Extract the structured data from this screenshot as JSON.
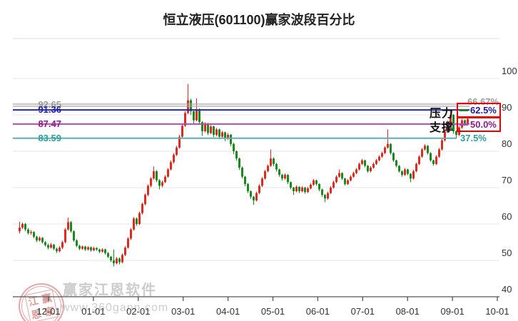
{
  "title": "恒立液压(601100)赢家波段百分比",
  "resistance_label": "压力",
  "support_label": "支撑",
  "watermark": {
    "brand": "赢家江恩软件",
    "url": "www.360gann.com",
    "seal_chars": [
      "江",
      "赢",
      "恩",
      "家"
    ]
  },
  "chart_data": {
    "type": "candlestick",
    "title": "恒立液压(601100)赢家波段百分比",
    "xlabel": "",
    "ylabel": "",
    "ylim": [
      40,
      100
    ],
    "yticks": [
      100,
      90,
      80,
      70,
      60,
      50,
      40
    ],
    "x_tick_labels": [
      "12-01",
      "01-01",
      "02-01",
      "03-01",
      "04-01",
      "05-01",
      "06-01",
      "07-01",
      "08-01",
      "09-01",
      "10-01"
    ],
    "grid": true,
    "colors": {
      "up": "#e02a20",
      "down": "#1a8a1f",
      "grid": "#e4e4e4",
      "axis": "#555555",
      "tick_text": "#333333",
      "box_border": "#e60000",
      "box_dash_resistance": "#1a8a1a",
      "level_gray": "#adadad",
      "level_blue": "#2626b0",
      "level_purple": "#b44ab4",
      "level_teal": "#5ab0b0"
    },
    "levels": [
      {
        "price": "92.65",
        "pct": "66.67%",
        "role": "",
        "line_color": "#adadad",
        "text_color": "#9a9a9a",
        "boxed": false,
        "double_line": true
      },
      {
        "price": "91.36",
        "pct": "62.5%",
        "role": "resistance",
        "line_color": "#2626b0",
        "text_color": "#1c1c9e",
        "boxed": true,
        "double_line": false
      },
      {
        "price": "87.47",
        "pct": "50.0%",
        "role": "support",
        "line_color": "#b44ab4",
        "text_color": "#8c1a8c",
        "boxed": true,
        "double_line": false
      },
      {
        "price": "83.59",
        "pct": "37.5%",
        "role": "",
        "line_color": "#5ab0b0",
        "text_color": "#2d9d9d",
        "boxed": false,
        "double_line": false
      }
    ],
    "candles": [
      [
        58.0,
        60.6,
        57.4,
        59.0
      ],
      [
        59.0,
        60.4,
        58.6,
        60.0
      ],
      [
        60.0,
        60.3,
        58.0,
        58.5
      ],
      [
        58.5,
        58.9,
        57.1,
        57.5
      ],
      [
        57.5,
        58.3,
        57.0,
        57.8
      ],
      [
        57.8,
        58.0,
        56.1,
        56.5
      ],
      [
        56.5,
        56.8,
        55.0,
        55.5
      ],
      [
        55.5,
        56.6,
        55.2,
        56.2
      ],
      [
        56.2,
        56.4,
        54.6,
        55.0
      ],
      [
        55.0,
        55.3,
        53.8,
        54.2
      ],
      [
        54.2,
        54.6,
        53.0,
        53.5
      ],
      [
        53.5,
        54.8,
        53.2,
        54.3
      ],
      [
        54.3,
        54.5,
        52.8,
        53.2
      ],
      [
        53.2,
        53.5,
        52.0,
        52.5
      ],
      [
        52.5,
        53.9,
        52.2,
        53.5
      ],
      [
        53.5,
        55.4,
        53.1,
        55.0
      ],
      [
        55.0,
        58.9,
        54.7,
        58.5
      ],
      [
        58.5,
        61.8,
        58.2,
        60.5
      ],
      [
        60.5,
        60.8,
        57.6,
        58.0
      ],
      [
        58.0,
        58.2,
        55.1,
        55.5
      ],
      [
        55.5,
        55.8,
        53.6,
        54.0
      ],
      [
        54.0,
        54.3,
        52.8,
        53.2
      ],
      [
        53.2,
        54.1,
        52.9,
        53.8
      ],
      [
        53.8,
        54.0,
        52.6,
        53.0
      ],
      [
        53.0,
        53.9,
        52.7,
        53.6
      ],
      [
        53.6,
        53.8,
        52.4,
        52.8
      ],
      [
        52.8,
        53.7,
        52.5,
        53.4
      ],
      [
        53.4,
        53.6,
        52.6,
        53.0
      ],
      [
        53.0,
        53.2,
        52.0,
        52.4
      ],
      [
        52.4,
        53.3,
        52.1,
        53.0
      ],
      [
        53.0,
        53.2,
        51.6,
        52.0
      ],
      [
        52.0,
        52.3,
        50.6,
        51.0
      ],
      [
        51.0,
        51.2,
        49.5,
        50.0
      ],
      [
        50.0,
        53.0,
        48.3,
        49.2
      ],
      [
        49.2,
        50.9,
        48.9,
        50.5
      ],
      [
        50.5,
        50.8,
        48.9,
        49.5
      ],
      [
        49.5,
        51.9,
        49.2,
        51.5
      ],
      [
        51.5,
        53.9,
        51.2,
        53.5
      ],
      [
        53.5,
        56.4,
        53.2,
        56.0
      ],
      [
        56.0,
        58.9,
        55.6,
        58.5
      ],
      [
        58.5,
        61.9,
        58.2,
        61.5
      ],
      [
        61.5,
        61.8,
        59.5,
        60.0
      ],
      [
        60.0,
        63.4,
        59.7,
        63.0
      ],
      [
        63.0,
        65.9,
        62.6,
        65.5
      ],
      [
        65.5,
        68.4,
        65.1,
        68.0
      ],
      [
        68.0,
        70.9,
        67.6,
        70.5
      ],
      [
        70.5,
        72.9,
        70.1,
        72.5
      ],
      [
        72.5,
        75.8,
        72.2,
        74.5
      ],
      [
        74.5,
        74.8,
        71.5,
        72.0
      ],
      [
        72.0,
        72.3,
        69.5,
        70.5
      ],
      [
        70.5,
        71.9,
        70.1,
        71.5
      ],
      [
        71.5,
        73.4,
        71.2,
        73.0
      ],
      [
        73.0,
        75.4,
        72.7,
        75.0
      ],
      [
        75.0,
        77.5,
        74.7,
        77.0
      ],
      [
        77.0,
        79.5,
        76.6,
        79.0
      ],
      [
        79.0,
        81.5,
        78.7,
        81.0
      ],
      [
        81.0,
        84.5,
        80.7,
        84.0
      ],
      [
        84.0,
        87.5,
        83.6,
        87.0
      ],
      [
        87.0,
        91.0,
        86.7,
        90.5
      ],
      [
        90.5,
        98.5,
        90.2,
        94.0
      ],
      [
        94.0,
        94.4,
        90.0,
        91.0
      ],
      [
        91.0,
        91.3,
        87.6,
        88.5
      ],
      [
        88.5,
        94.5,
        88.2,
        91.5
      ],
      [
        91.5,
        91.8,
        87.3,
        88.0
      ],
      [
        88.0,
        88.2,
        84.2,
        85.5
      ],
      [
        85.5,
        88.0,
        85.2,
        87.5
      ],
      [
        87.5,
        87.8,
        84.4,
        85.0
      ],
      [
        85.0,
        87.2,
        84.7,
        86.8
      ],
      [
        86.8,
        87.0,
        83.9,
        84.5
      ],
      [
        84.5,
        86.4,
        84.1,
        86.0
      ],
      [
        86.0,
        86.2,
        83.3,
        84.0
      ],
      [
        84.0,
        85.6,
        83.6,
        85.2
      ],
      [
        85.2,
        85.4,
        82.8,
        83.5
      ],
      [
        83.5,
        85.0,
        83.1,
        84.5
      ],
      [
        84.5,
        84.7,
        81.4,
        82.0
      ],
      [
        82.0,
        82.3,
        79.2,
        80.0
      ],
      [
        80.0,
        80.2,
        77.4,
        78.0
      ],
      [
        78.0,
        78.2,
        74.9,
        75.5
      ],
      [
        75.5,
        75.8,
        72.5,
        73.0
      ],
      [
        73.0,
        73.2,
        70.4,
        71.0
      ],
      [
        71.0,
        71.3,
        68.5,
        69.0
      ],
      [
        69.0,
        69.2,
        66.9,
        67.5
      ],
      [
        67.5,
        67.7,
        65.3,
        66.5
      ],
      [
        66.5,
        68.9,
        66.2,
        68.5
      ],
      [
        68.5,
        70.9,
        68.2,
        70.5
      ],
      [
        70.5,
        72.9,
        70.2,
        72.5
      ],
      [
        72.5,
        74.9,
        72.2,
        74.5
      ],
      [
        74.5,
        76.4,
        74.2,
        76.0
      ],
      [
        76.0,
        80.5,
        75.7,
        78.0
      ],
      [
        78.0,
        78.3,
        75.9,
        76.5
      ],
      [
        76.5,
        76.8,
        74.4,
        75.0
      ],
      [
        75.0,
        75.2,
        73.0,
        73.5
      ],
      [
        73.5,
        73.8,
        71.9,
        72.5
      ],
      [
        72.5,
        73.9,
        72.2,
        73.5
      ],
      [
        73.5,
        73.7,
        71.0,
        71.5
      ],
      [
        71.5,
        71.7,
        69.5,
        70.0
      ],
      [
        70.0,
        70.2,
        68.0,
        69.0
      ],
      [
        69.0,
        70.6,
        68.7,
        70.2
      ],
      [
        70.2,
        70.4,
        68.5,
        69.0
      ],
      [
        69.0,
        70.4,
        68.7,
        70.0
      ],
      [
        70.0,
        70.2,
        68.3,
        68.8
      ],
      [
        68.8,
        70.2,
        68.5,
        69.8
      ],
      [
        69.8,
        71.2,
        69.5,
        70.8
      ],
      [
        70.8,
        72.4,
        70.5,
        72.0
      ],
      [
        72.0,
        72.2,
        70.5,
        71.0
      ],
      [
        71.0,
        71.2,
        69.0,
        69.5
      ],
      [
        69.5,
        69.7,
        67.5,
        68.0
      ],
      [
        68.0,
        68.2,
        66.0,
        67.0
      ],
      [
        67.0,
        68.9,
        66.7,
        68.5
      ],
      [
        68.5,
        70.4,
        68.2,
        70.0
      ],
      [
        70.0,
        71.9,
        69.7,
        71.5
      ],
      [
        71.5,
        73.4,
        71.2,
        73.0
      ],
      [
        73.0,
        75.0,
        72.7,
        74.0
      ],
      [
        74.0,
        74.2,
        72.1,
        72.5
      ],
      [
        72.5,
        72.7,
        70.6,
        71.0
      ],
      [
        71.0,
        72.4,
        70.7,
        72.0
      ],
      [
        72.0,
        73.4,
        71.7,
        73.0
      ],
      [
        73.0,
        74.4,
        72.7,
        74.0
      ],
      [
        74.0,
        75.4,
        73.7,
        75.0
      ],
      [
        75.0,
        76.9,
        74.7,
        76.5
      ],
      [
        76.5,
        77.9,
        76.2,
        77.5
      ],
      [
        77.5,
        77.7,
        75.6,
        76.0
      ],
      [
        76.0,
        76.2,
        74.1,
        74.5
      ],
      [
        74.5,
        75.9,
        74.2,
        75.5
      ],
      [
        75.5,
        76.9,
        75.2,
        76.5
      ],
      [
        76.5,
        77.9,
        76.2,
        77.5
      ],
      [
        77.5,
        78.9,
        77.2,
        78.5
      ],
      [
        78.5,
        79.9,
        78.2,
        79.5
      ],
      [
        79.5,
        81.4,
        79.2,
        81.0
      ],
      [
        81.0,
        86.0,
        80.7,
        82.0
      ],
      [
        82.0,
        82.2,
        79.1,
        79.5
      ],
      [
        79.5,
        79.7,
        77.1,
        77.5
      ],
      [
        77.5,
        77.7,
        75.6,
        76.0
      ],
      [
        76.0,
        76.2,
        74.1,
        74.5
      ],
      [
        74.5,
        74.7,
        73.0,
        73.5
      ],
      [
        73.5,
        75.4,
        73.2,
        75.0
      ],
      [
        75.0,
        75.2,
        73.4,
        73.8
      ],
      [
        73.8,
        74.0,
        71.5,
        72.5
      ],
      [
        72.5,
        74.9,
        72.2,
        74.5
      ],
      [
        74.5,
        76.9,
        74.2,
        76.5
      ],
      [
        76.5,
        78.9,
        76.2,
        78.5
      ],
      [
        78.5,
        80.9,
        78.2,
        80.5
      ],
      [
        80.5,
        81.9,
        80.2,
        81.5
      ],
      [
        81.5,
        81.7,
        79.1,
        79.5
      ],
      [
        79.5,
        79.7,
        77.1,
        77.5
      ],
      [
        77.5,
        77.7,
        76.0,
        76.5
      ],
      [
        76.5,
        78.9,
        76.2,
        78.5
      ],
      [
        78.5,
        80.9,
        78.2,
        80.5
      ],
      [
        80.5,
        83.4,
        80.2,
        83.0
      ],
      [
        83.0,
        85.9,
        82.7,
        85.5
      ],
      [
        85.5,
        88.4,
        85.2,
        88.0
      ],
      [
        88.0,
        91.3,
        87.7,
        90.0
      ],
      [
        90.0,
        90.2,
        84.8,
        85.5
      ],
      [
        85.5,
        85.7,
        83.5,
        84.5
      ],
      [
        84.5,
        86.9,
        84.2,
        86.5
      ],
      [
        86.5,
        88.9,
        86.2,
        88.5
      ],
      [
        88.5,
        88.7,
        87.0,
        87.5
      ],
      [
        87.5,
        89.2,
        87.2,
        88.8
      ]
    ]
  }
}
